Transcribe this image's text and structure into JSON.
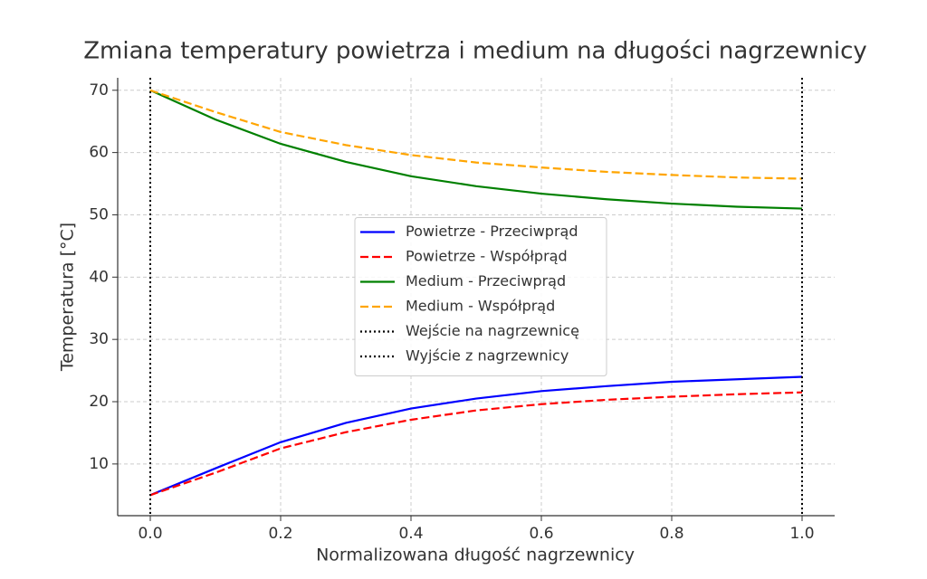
{
  "chart_data": {
    "type": "line",
    "title": "Zmiana temperatury powietrza i medium na długości nagrzewnicy",
    "x_label": "Normalizowana długość nagrzewnicy",
    "y_label": "Temperatura [°C]",
    "x": [
      0,
      0.1,
      0.2,
      0.3,
      0.4,
      0.5,
      0.6,
      0.7,
      0.8,
      0.9,
      1.0
    ],
    "series": [
      {
        "name": "Powietrze - Przeciwprąd",
        "color": "#0000ff",
        "style": "solid",
        "values": [
          5,
          9.3,
          13.5,
          16.6,
          18.9,
          20.5,
          21.7,
          22.5,
          23.2,
          23.6,
          24.0
        ]
      },
      {
        "name": "Powietrze - Współprąd",
        "color": "#ff0000",
        "style": "dashed",
        "values": [
          5,
          8.6,
          12.5,
          15.1,
          17.1,
          18.6,
          19.6,
          20.3,
          20.8,
          21.2,
          21.5
        ]
      },
      {
        "name": "Medium - Przeciwprąd",
        "color": "#008000",
        "style": "solid",
        "values": [
          70,
          65.3,
          61.4,
          58.5,
          56.2,
          54.6,
          53.4,
          52.5,
          51.8,
          51.3,
          51.0
        ]
      },
      {
        "name": "Medium - Współprąd",
        "color": "#ffa500",
        "style": "dashed",
        "values": [
          70,
          66.5,
          63.3,
          61.2,
          59.6,
          58.4,
          57.6,
          56.9,
          56.4,
          56.0,
          55.8
        ]
      }
    ],
    "vlines": [
      {
        "name": "Wejście na nagrzewnicę",
        "x": 0,
        "color": "#000000",
        "style": "dotted"
      },
      {
        "name": "Wyjście z nagrzewnicy",
        "x": 1,
        "color": "#000000",
        "style": "dotted"
      }
    ],
    "xlim": [
      -0.05,
      1.05
    ],
    "ylim": [
      1.7,
      72
    ],
    "xticks": [
      {
        "value": 0,
        "label": "0.0"
      },
      0.2,
      0.4,
      0.6,
      0.8,
      {
        "value": 1,
        "label": "1.0"
      }
    ],
    "yticks": [
      10,
      20,
      30,
      40,
      50,
      60,
      70
    ],
    "grid": true,
    "legend": "center"
  }
}
